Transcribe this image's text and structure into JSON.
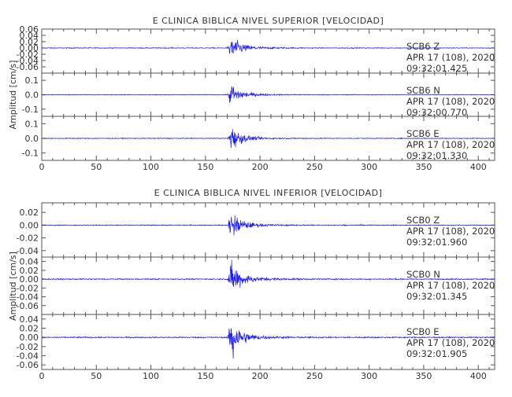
{
  "colors": {
    "trace": "#1a1aff",
    "frame": "#555555",
    "text": "#333333"
  },
  "chart_data": [
    {
      "type": "line",
      "title": "E CLINICA BIBLICA NIVEL SUPERIOR [VELOCIDAD]",
      "xlabel": "",
      "ylabel": "Amplitud [cm/s]",
      "xlim": [
        0,
        415
      ],
      "xticks": [
        "0",
        "50",
        "100",
        "150",
        "200",
        "250",
        "300",
        "350",
        "400"
      ],
      "event_onset": 170,
      "panels": [
        {
          "station": "SCB6",
          "component": "Z",
          "date": "APR 17 (108), 2020",
          "time": "09:32:01.425",
          "ylim": [
            -0.08,
            0.06
          ],
          "amplitude": 0.055,
          "yticks": [
            "0.06",
            "0.04",
            "0.02",
            "0.00",
            "-0.02",
            "-0.04",
            "-0.06"
          ]
        },
        {
          "station": "SCB6",
          "component": "N",
          "date": "APR 17 (108), 2020",
          "time": "09:32:00.770",
          "ylim": [
            -0.15,
            0.15
          ],
          "amplitude": 0.11,
          "yticks": [
            "0.1",
            "0.0",
            "-0.1"
          ]
        },
        {
          "station": "SCB6",
          "component": "E",
          "date": "APR 17 (108), 2020",
          "time": "09:32:01.330",
          "ylim": [
            -0.15,
            0.15
          ],
          "amplitude": 0.12,
          "yticks": [
            "0.1",
            "0.0",
            "-0.1"
          ]
        }
      ]
    },
    {
      "type": "line",
      "title": "E CLINICA BIBLICA NIVEL INFERIOR [VELOCIDAD]",
      "xlabel": "",
      "ylabel": "Amplitud [cm/s]",
      "xlim": [
        0,
        415
      ],
      "xticks": [
        "0",
        "50",
        "100",
        "150",
        "200",
        "250",
        "300",
        "350",
        "400"
      ],
      "event_onset": 170,
      "panels": [
        {
          "station": "SCB0",
          "component": "Z",
          "date": "APR 17 (108), 2020",
          "time": "09:32:01.960",
          "ylim": [
            -0.05,
            0.035
          ],
          "amplitude": 0.032,
          "yticks": [
            "0.02",
            "0.00",
            "-0.02",
            "-0.04"
          ]
        },
        {
          "station": "SCB0",
          "component": "N",
          "date": "APR 17 (108), 2020",
          "time": "09:32:01.345",
          "ylim": [
            -0.08,
            0.05
          ],
          "amplitude": 0.06,
          "yticks": [
            "0.04",
            "0.02",
            "0.00",
            "-0.02",
            "-0.04",
            "-0.06"
          ]
        },
        {
          "station": "SCB0",
          "component": "E",
          "date": "APR 17 (108), 2020",
          "time": "09:32:01.905",
          "ylim": [
            -0.07,
            0.05
          ],
          "amplitude": 0.06,
          "yticks": [
            "0.04",
            "0.02",
            "0.00",
            "-0.02",
            "-0.04",
            "-0.06"
          ]
        }
      ]
    }
  ]
}
